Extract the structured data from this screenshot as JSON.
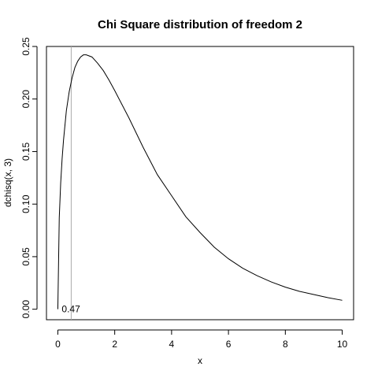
{
  "chart_data": {
    "type": "line",
    "title": "Chi Square distribution of freedom 2",
    "xlabel": "x",
    "ylabel": "dchisq(x, 3)",
    "xlim": [
      -0.4,
      10.4
    ],
    "ylim": [
      -0.01,
      0.25
    ],
    "x_ticks": [
      0,
      2,
      4,
      6,
      8,
      10
    ],
    "x_tick_labels": [
      "0",
      "2",
      "4",
      "6",
      "8",
      "10"
    ],
    "y_ticks": [
      0.0,
      0.05,
      0.1,
      0.15,
      0.2,
      0.25
    ],
    "y_tick_labels": [
      "0.00",
      "0.05",
      "0.10",
      "0.15",
      "0.20",
      "0.25"
    ],
    "grid": false,
    "series": [
      {
        "x": [
          0.0,
          0.05,
          0.1,
          0.15,
          0.2,
          0.3,
          0.4,
          0.5,
          0.6,
          0.7,
          0.8,
          0.9,
          1.0,
          1.2,
          1.4,
          1.6,
          1.8,
          2.0,
          2.5,
          3.0,
          3.5,
          4.0,
          4.5,
          5.0,
          5.5,
          6.0,
          6.5,
          7.0,
          7.5,
          8.0,
          8.5,
          9.0,
          9.5,
          10.0
        ],
        "y": [
          0.0,
          0.087,
          0.12,
          0.143,
          0.161,
          0.189,
          0.207,
          0.22,
          0.23,
          0.236,
          0.24,
          0.242,
          0.242,
          0.24,
          0.234,
          0.227,
          0.218,
          0.208,
          0.182,
          0.154,
          0.128,
          0.108,
          0.088,
          0.073,
          0.059,
          0.048,
          0.039,
          0.032,
          0.026,
          0.021,
          0.017,
          0.014,
          0.011,
          0.0085
        ],
        "color": "#000000"
      }
    ],
    "vline": {
      "x": 0.47,
      "color": "#aaaaaa"
    },
    "annotations": [
      {
        "text": "0.47",
        "x": 0.47,
        "y": 0.0
      }
    ]
  }
}
